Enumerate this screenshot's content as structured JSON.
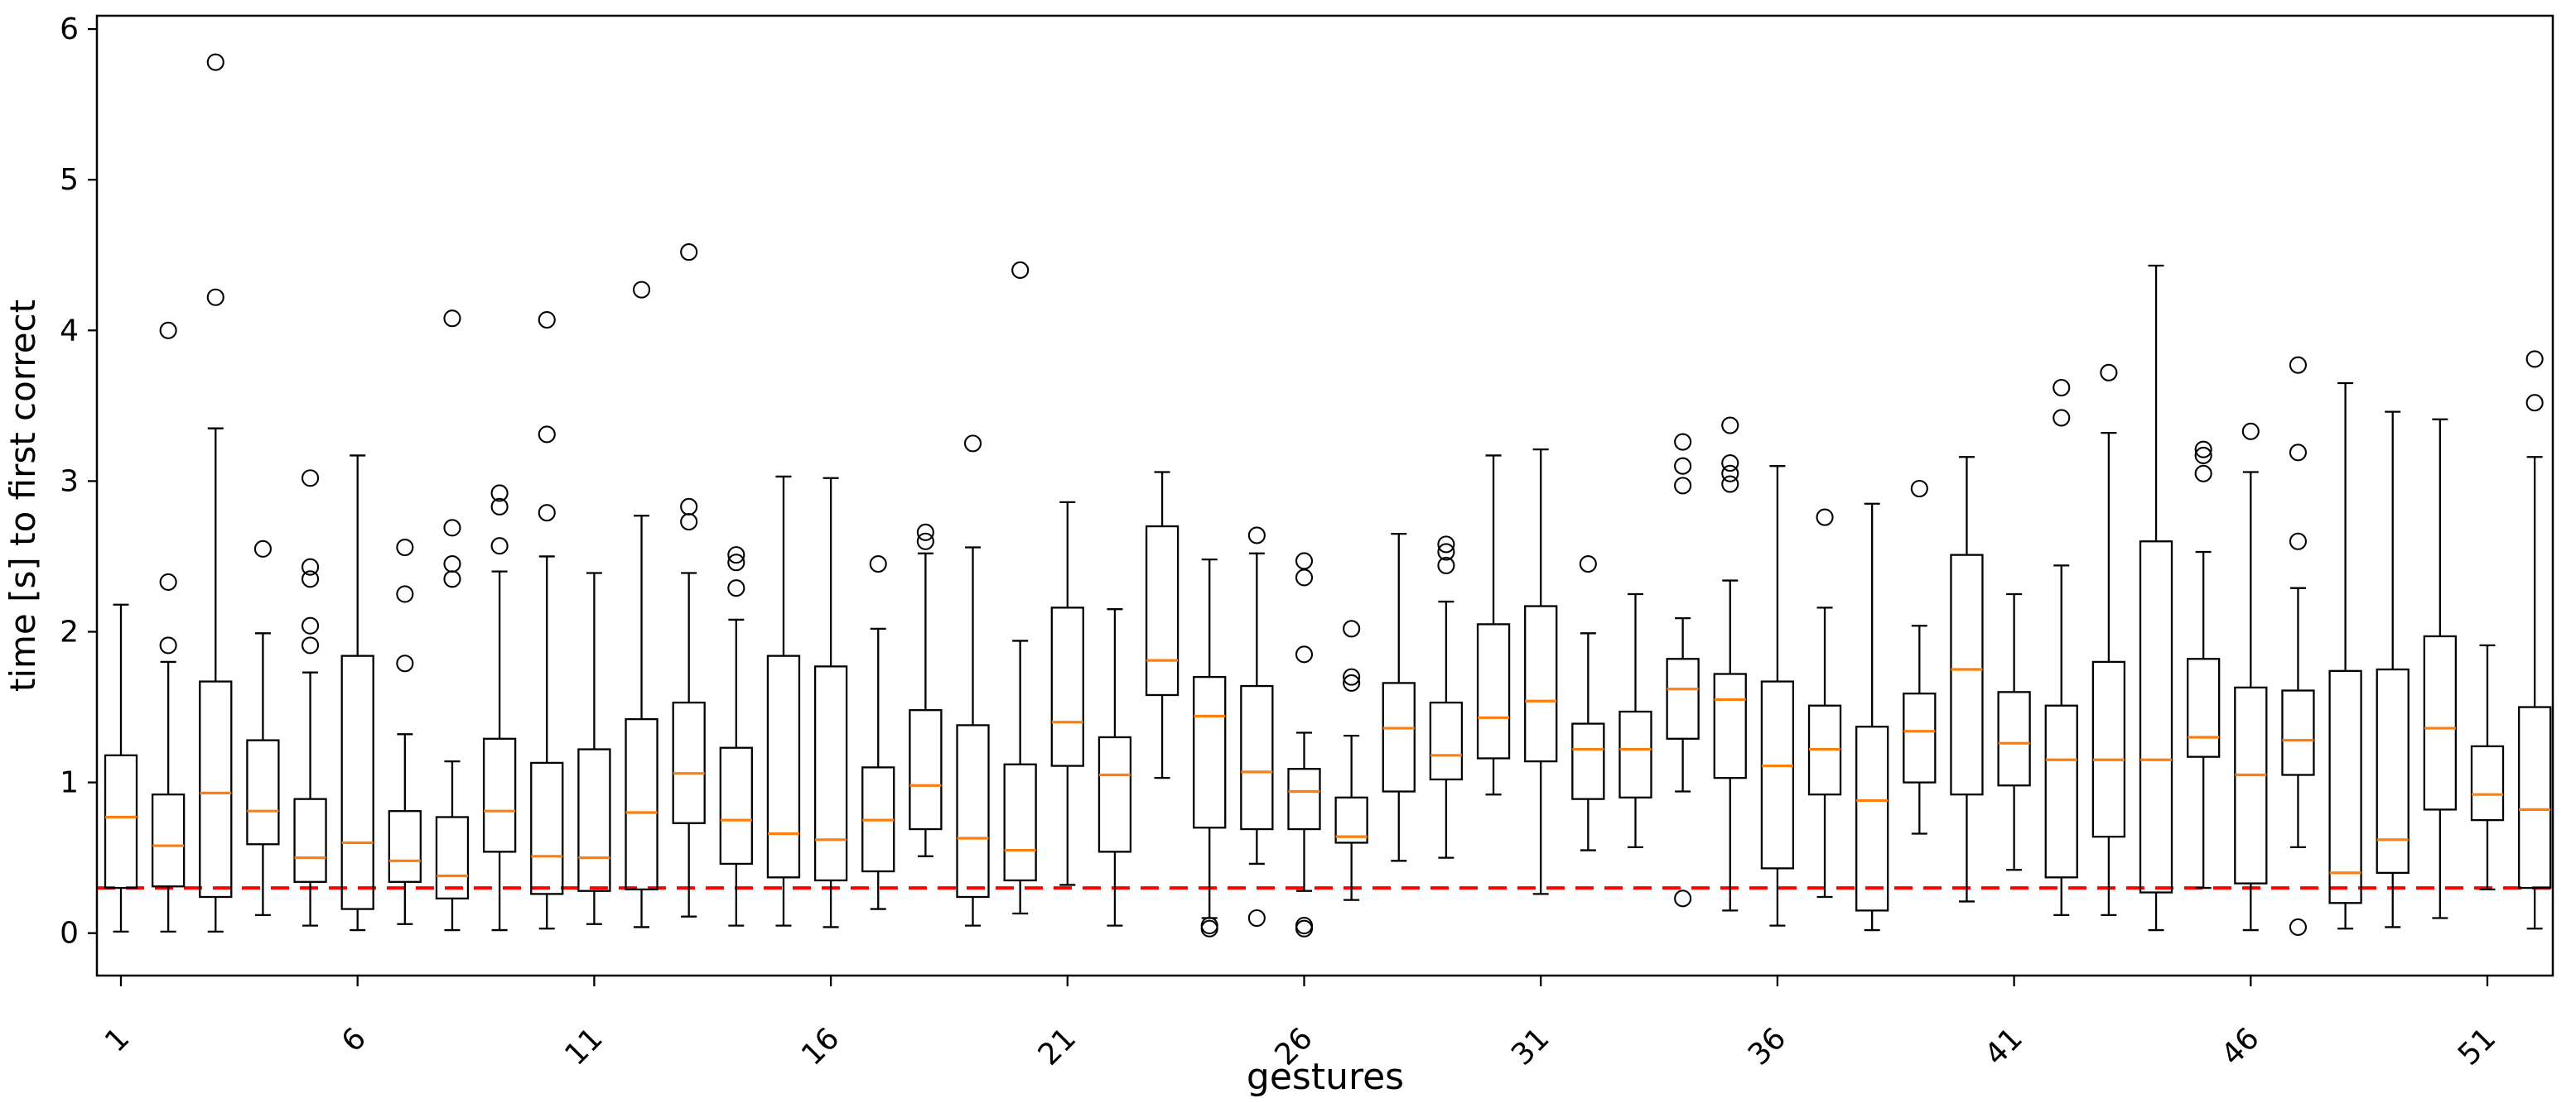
{
  "chart_data": {
    "type": "boxplot",
    "title": "",
    "xlabel": "gestures",
    "ylabel": "time [s] to first correct",
    "ylim": [
      -0.28,
      6.09
    ],
    "yticks": [
      0,
      1,
      2,
      3,
      4,
      5,
      6
    ],
    "xtick_gestures": [
      1,
      6,
      11,
      16,
      21,
      26,
      31,
      36,
      41,
      46,
      51
    ],
    "n_boxes": 52,
    "grid": false,
    "legend": "none",
    "colors": {
      "box_edge": "#000000",
      "median": "#ff7f0e",
      "reference_line": "#ff0000",
      "background": "#ffffff"
    },
    "reference_line": {
      "y": 0.3,
      "style": "dashed"
    },
    "boxes": [
      {
        "gesture": 1,
        "whislo": 0.01,
        "q1": 0.3,
        "med": 0.77,
        "q3": 1.18,
        "whishi": 2.18,
        "fliers": []
      },
      {
        "gesture": 2,
        "whislo": 0.01,
        "q1": 0.31,
        "med": 0.58,
        "q3": 0.92,
        "whishi": 1.8,
        "fliers": [
          1.91,
          2.33,
          4.0
        ]
      },
      {
        "gesture": 3,
        "whislo": 0.01,
        "q1": 0.24,
        "med": 0.93,
        "q3": 1.67,
        "whishi": 3.35,
        "fliers": [
          4.22,
          5.78
        ]
      },
      {
        "gesture": 4,
        "whislo": 0.12,
        "q1": 0.59,
        "med": 0.81,
        "q3": 1.28,
        "whishi": 1.99,
        "fliers": [
          2.55
        ]
      },
      {
        "gesture": 5,
        "whislo": 0.05,
        "q1": 0.34,
        "med": 0.5,
        "q3": 0.89,
        "whishi": 1.73,
        "fliers": [
          1.91,
          2.04,
          2.35,
          2.43,
          3.02
        ]
      },
      {
        "gesture": 6,
        "whislo": 0.02,
        "q1": 0.16,
        "med": 0.6,
        "q3": 1.84,
        "whishi": 3.17,
        "fliers": []
      },
      {
        "gesture": 7,
        "whislo": 0.06,
        "q1": 0.34,
        "med": 0.48,
        "q3": 0.81,
        "whishi": 1.32,
        "fliers": [
          1.79,
          2.25,
          2.56
        ]
      },
      {
        "gesture": 8,
        "whislo": 0.02,
        "q1": 0.23,
        "med": 0.38,
        "q3": 0.77,
        "whishi": 1.14,
        "fliers": [
          2.35,
          2.45,
          2.69,
          4.08
        ]
      },
      {
        "gesture": 9,
        "whislo": 0.02,
        "q1": 0.54,
        "med": 0.81,
        "q3": 1.29,
        "whishi": 2.4,
        "fliers": [
          2.57,
          2.83,
          2.92
        ]
      },
      {
        "gesture": 10,
        "whislo": 0.03,
        "q1": 0.26,
        "med": 0.51,
        "q3": 1.13,
        "whishi": 2.5,
        "fliers": [
          2.79,
          3.31,
          4.07
        ]
      },
      {
        "gesture": 11,
        "whislo": 0.06,
        "q1": 0.28,
        "med": 0.5,
        "q3": 1.22,
        "whishi": 2.39,
        "fliers": []
      },
      {
        "gesture": 12,
        "whislo": 0.04,
        "q1": 0.29,
        "med": 0.8,
        "q3": 1.42,
        "whishi": 2.77,
        "fliers": [
          4.27
        ]
      },
      {
        "gesture": 13,
        "whislo": 0.11,
        "q1": 0.73,
        "med": 1.06,
        "q3": 1.53,
        "whishi": 2.39,
        "fliers": [
          2.73,
          2.83,
          4.52
        ]
      },
      {
        "gesture": 14,
        "whislo": 0.05,
        "q1": 0.46,
        "med": 0.75,
        "q3": 1.23,
        "whishi": 2.08,
        "fliers": [
          2.29,
          2.46,
          2.51
        ]
      },
      {
        "gesture": 15,
        "whislo": 0.05,
        "q1": 0.37,
        "med": 0.66,
        "q3": 1.84,
        "whishi": 3.03,
        "fliers": []
      },
      {
        "gesture": 16,
        "whislo": 0.04,
        "q1": 0.35,
        "med": 0.62,
        "q3": 1.77,
        "whishi": 3.02,
        "fliers": []
      },
      {
        "gesture": 17,
        "whislo": 0.16,
        "q1": 0.41,
        "med": 0.75,
        "q3": 1.1,
        "whishi": 2.02,
        "fliers": [
          2.45
        ]
      },
      {
        "gesture": 18,
        "whislo": 0.51,
        "q1": 0.69,
        "med": 0.98,
        "q3": 1.48,
        "whishi": 2.52,
        "fliers": [
          2.6,
          2.66
        ]
      },
      {
        "gesture": 19,
        "whislo": 0.05,
        "q1": 0.24,
        "med": 0.63,
        "q3": 1.38,
        "whishi": 2.56,
        "fliers": [
          3.25
        ]
      },
      {
        "gesture": 20,
        "whislo": 0.13,
        "q1": 0.35,
        "med": 0.55,
        "q3": 1.12,
        "whishi": 1.94,
        "fliers": [
          4.4
        ]
      },
      {
        "gesture": 21,
        "whislo": 0.32,
        "q1": 1.11,
        "med": 1.4,
        "q3": 2.16,
        "whishi": 2.86,
        "fliers": []
      },
      {
        "gesture": 22,
        "whislo": 0.05,
        "q1": 0.54,
        "med": 1.05,
        "q3": 1.3,
        "whishi": 2.15,
        "fliers": []
      },
      {
        "gesture": 23,
        "whislo": 1.03,
        "q1": 1.58,
        "med": 1.81,
        "q3": 2.7,
        "whishi": 3.06,
        "fliers": []
      },
      {
        "gesture": 24,
        "whislo": 0.1,
        "q1": 0.7,
        "med": 1.44,
        "q3": 1.7,
        "whishi": 2.48,
        "fliers": [
          0.03,
          0.05
        ]
      },
      {
        "gesture": 25,
        "whislo": 0.46,
        "q1": 0.69,
        "med": 1.07,
        "q3": 1.64,
        "whishi": 2.52,
        "fliers": [
          0.1,
          2.64
        ]
      },
      {
        "gesture": 26,
        "whislo": 0.28,
        "q1": 0.69,
        "med": 0.94,
        "q3": 1.09,
        "whishi": 1.33,
        "fliers": [
          0.03,
          0.05,
          1.85,
          2.36,
          2.47
        ]
      },
      {
        "gesture": 27,
        "whislo": 0.22,
        "q1": 0.6,
        "med": 0.64,
        "q3": 0.9,
        "whishi": 1.31,
        "fliers": [
          1.66,
          1.7,
          2.02
        ]
      },
      {
        "gesture": 28,
        "whislo": 0.48,
        "q1": 0.94,
        "med": 1.36,
        "q3": 1.66,
        "whishi": 2.65,
        "fliers": []
      },
      {
        "gesture": 29,
        "whislo": 0.5,
        "q1": 1.02,
        "med": 1.18,
        "q3": 1.53,
        "whishi": 2.2,
        "fliers": [
          2.44,
          2.53,
          2.58
        ]
      },
      {
        "gesture": 30,
        "whislo": 0.92,
        "q1": 1.16,
        "med": 1.43,
        "q3": 2.05,
        "whishi": 3.17,
        "fliers": []
      },
      {
        "gesture": 31,
        "whislo": 0.26,
        "q1": 1.14,
        "med": 1.54,
        "q3": 2.17,
        "whishi": 3.21,
        "fliers": []
      },
      {
        "gesture": 32,
        "whislo": 0.55,
        "q1": 0.89,
        "med": 1.22,
        "q3": 1.39,
        "whishi": 1.99,
        "fliers": [
          2.45
        ]
      },
      {
        "gesture": 33,
        "whislo": 0.57,
        "q1": 0.9,
        "med": 1.22,
        "q3": 1.47,
        "whishi": 2.25,
        "fliers": []
      },
      {
        "gesture": 34,
        "whislo": 0.94,
        "q1": 1.29,
        "med": 1.62,
        "q3": 1.82,
        "whishi": 2.09,
        "fliers": [
          0.23,
          2.97,
          3.1,
          3.26
        ]
      },
      {
        "gesture": 35,
        "whislo": 0.15,
        "q1": 1.03,
        "med": 1.55,
        "q3": 1.72,
        "whishi": 2.34,
        "fliers": [
          2.98,
          3.05,
          3.12,
          3.37
        ]
      },
      {
        "gesture": 36,
        "whislo": 0.05,
        "q1": 0.43,
        "med": 1.11,
        "q3": 1.67,
        "whishi": 3.1,
        "fliers": []
      },
      {
        "gesture": 37,
        "whislo": 0.24,
        "q1": 0.92,
        "med": 1.22,
        "q3": 1.51,
        "whishi": 2.16,
        "fliers": [
          2.76
        ]
      },
      {
        "gesture": 38,
        "whislo": 0.02,
        "q1": 0.15,
        "med": 0.88,
        "q3": 1.37,
        "whishi": 2.85,
        "fliers": []
      },
      {
        "gesture": 39,
        "whislo": 0.66,
        "q1": 1.0,
        "med": 1.34,
        "q3": 1.59,
        "whishi": 2.04,
        "fliers": [
          2.95
        ]
      },
      {
        "gesture": 40,
        "whislo": 0.21,
        "q1": 0.92,
        "med": 1.75,
        "q3": 2.51,
        "whishi": 3.16,
        "fliers": []
      },
      {
        "gesture": 41,
        "whislo": 0.42,
        "q1": 0.98,
        "med": 1.26,
        "q3": 1.6,
        "whishi": 2.25,
        "fliers": []
      },
      {
        "gesture": 42,
        "whislo": 0.12,
        "q1": 0.37,
        "med": 1.15,
        "q3": 1.51,
        "whishi": 2.44,
        "fliers": [
          3.42,
          3.62
        ]
      },
      {
        "gesture": 43,
        "whislo": 0.12,
        "q1": 0.64,
        "med": 1.15,
        "q3": 1.8,
        "whishi": 3.32,
        "fliers": [
          3.72
        ]
      },
      {
        "gesture": 44,
        "whislo": 0.02,
        "q1": 0.27,
        "med": 1.15,
        "q3": 2.6,
        "whishi": 4.43,
        "fliers": []
      },
      {
        "gesture": 45,
        "whislo": 0.3,
        "q1": 1.17,
        "med": 1.3,
        "q3": 1.82,
        "whishi": 2.53,
        "fliers": [
          3.05,
          3.17,
          3.21
        ]
      },
      {
        "gesture": 46,
        "whislo": 0.02,
        "q1": 0.33,
        "med": 1.05,
        "q3": 1.63,
        "whishi": 3.06,
        "fliers": [
          3.33
        ]
      },
      {
        "gesture": 47,
        "whislo": 0.57,
        "q1": 1.05,
        "med": 1.28,
        "q3": 1.61,
        "whishi": 2.29,
        "fliers": [
          0.04,
          2.6,
          3.19,
          3.77
        ]
      },
      {
        "gesture": 48,
        "whislo": 0.03,
        "q1": 0.2,
        "med": 0.4,
        "q3": 1.74,
        "whishi": 3.65,
        "fliers": []
      },
      {
        "gesture": 49,
        "whislo": 0.04,
        "q1": 0.4,
        "med": 0.62,
        "q3": 1.75,
        "whishi": 3.46,
        "fliers": []
      },
      {
        "gesture": 50,
        "whislo": 0.1,
        "q1": 0.82,
        "med": 1.36,
        "q3": 1.97,
        "whishi": 3.41,
        "fliers": []
      },
      {
        "gesture": 51,
        "whislo": 0.29,
        "q1": 0.75,
        "med": 0.92,
        "q3": 1.24,
        "whishi": 1.91,
        "fliers": []
      },
      {
        "gesture": 52,
        "whislo": 0.03,
        "q1": 0.3,
        "med": 0.82,
        "q3": 1.5,
        "whishi": 3.16,
        "fliers": [
          3.52,
          3.81
        ]
      }
    ]
  }
}
